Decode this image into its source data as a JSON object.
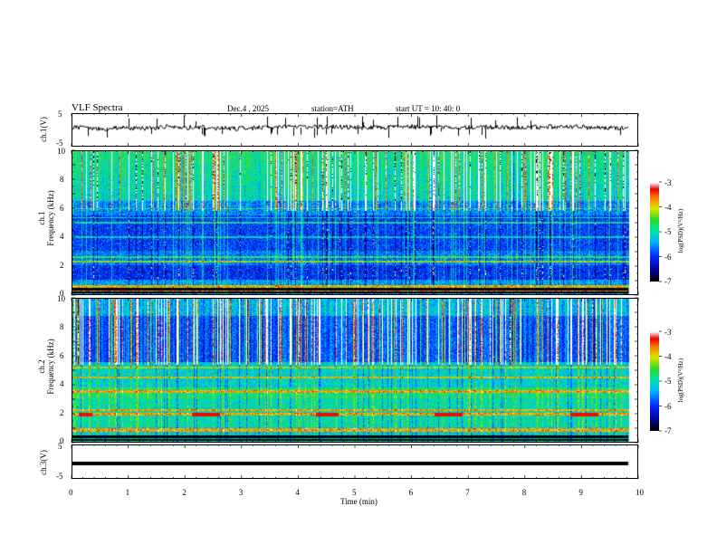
{
  "header": {
    "title": "VLF  Spectra",
    "date": "Dec.4  , 2025",
    "station": "station=ATH",
    "start_ut": "start  UT  =    10: 40: 0"
  },
  "chart_data": [
    {
      "type": "line",
      "name": "ch1-waveform",
      "ylabel": "ch.1(V)",
      "ylim": [
        -5,
        5
      ],
      "ytick_labels": [
        "5",
        "-5"
      ],
      "baseline_approx": 0,
      "xlim": [
        0,
        10
      ]
    },
    {
      "type": "heatmap",
      "name": "ch1-spectrogram",
      "ylabel_line1": "ch.1",
      "ylabel_line2": "Frequency  (kHz)",
      "ylim": [
        0,
        10
      ],
      "ytick_labels": [
        "0",
        "2",
        "4",
        "6",
        "8",
        "10"
      ],
      "xlim": [
        0,
        10
      ],
      "colorbar": {
        "label": "log(PSD)(V²/Hz)",
        "range": [
          -7,
          -3
        ],
        "tick_labels": [
          "-3",
          "-4",
          "-5",
          "-6",
          "-7"
        ]
      },
      "features": {
        "bright_bands_khz": [
          0.2,
          0.5,
          2.2,
          2.6,
          4.0,
          5.0,
          5.3,
          6.0
        ],
        "quiet_bands_khz": [
          [
            1.0,
            2.0
          ],
          [
            3.0,
            5.0
          ],
          [
            5.5,
            6.5
          ]
        ]
      }
    },
    {
      "type": "heatmap",
      "name": "ch2-spectrogram",
      "ylabel_line1": "ch.2",
      "ylabel_line2": "Frequency  (kHz)",
      "ylim": [
        0,
        10
      ],
      "ytick_labels": [
        "0",
        "2",
        "4",
        "6",
        "8",
        "10"
      ],
      "xlim": [
        0,
        10
      ],
      "colorbar": {
        "label": "log(PSD)(V²/Hz)",
        "range": [
          -7,
          -3
        ],
        "tick_labels": [
          "-3",
          "-4",
          "-5",
          "-6",
          "-7"
        ]
      },
      "features": {
        "bright_bands_khz": [
          0.8,
          1.9,
          2.2,
          3.5,
          4.5,
          5.2
        ],
        "quiet_bands_khz": [
          [
            5.5,
            9.8
          ]
        ]
      }
    },
    {
      "type": "line",
      "name": "ch3-waveform",
      "ylabel": "ch.3(V)",
      "ylim": [
        -5,
        5
      ],
      "ytick_labels": [
        "5",
        "-5"
      ],
      "baseline_approx": -2,
      "xlim": [
        0,
        10
      ]
    }
  ],
  "xaxis": {
    "label": "Time  (min)",
    "tick_labels": [
      "0",
      "1",
      "2",
      "3",
      "4",
      "5",
      "6",
      "7",
      "8",
      "9",
      "10"
    ],
    "range": [
      0,
      10
    ]
  }
}
